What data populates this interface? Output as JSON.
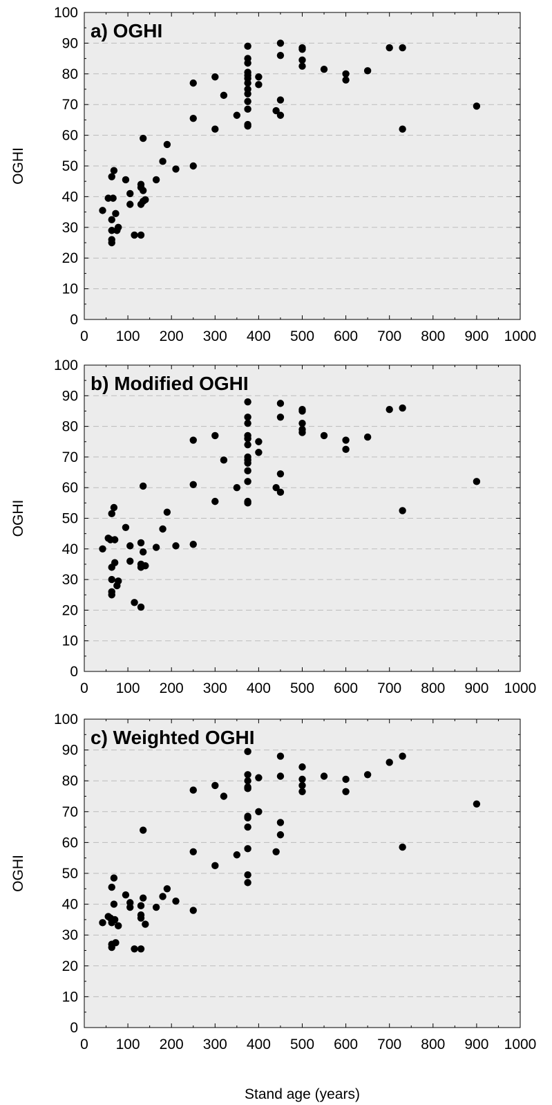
{
  "chart_data": [
    {
      "type": "scatter",
      "title": "a) OGHI",
      "xlabel": "",
      "ylabel": "OGHI",
      "xlim": [
        0,
        1000
      ],
      "ylim": [
        0,
        100
      ],
      "xticks": [
        0,
        100,
        200,
        300,
        400,
        500,
        600,
        700,
        800,
        900,
        1000
      ],
      "yticks": [
        0,
        10,
        20,
        30,
        40,
        50,
        60,
        70,
        80,
        90,
        100
      ],
      "grid": "horizontal dashed",
      "points": [
        {
          "x": 42,
          "y": 35.5
        },
        {
          "x": 55,
          "y": 39.5
        },
        {
          "x": 63,
          "y": 46.5
        },
        {
          "x": 63,
          "y": 32.5
        },
        {
          "x": 63,
          "y": 29
        },
        {
          "x": 63,
          "y": 26
        },
        {
          "x": 63,
          "y": 25
        },
        {
          "x": 66,
          "y": 39.5
        },
        {
          "x": 68,
          "y": 48.5
        },
        {
          "x": 72,
          "y": 34.5
        },
        {
          "x": 75,
          "y": 29
        },
        {
          "x": 78,
          "y": 30
        },
        {
          "x": 95,
          "y": 45.5
        },
        {
          "x": 105,
          "y": 41
        },
        {
          "x": 105,
          "y": 37.5
        },
        {
          "x": 115,
          "y": 27.5
        },
        {
          "x": 130,
          "y": 27.5
        },
        {
          "x": 130,
          "y": 44
        },
        {
          "x": 130,
          "y": 43
        },
        {
          "x": 130,
          "y": 37.5
        },
        {
          "x": 135,
          "y": 42
        },
        {
          "x": 135,
          "y": 38.5
        },
        {
          "x": 140,
          "y": 39
        },
        {
          "x": 135,
          "y": 59
        },
        {
          "x": 165,
          "y": 45.5
        },
        {
          "x": 180,
          "y": 51.5
        },
        {
          "x": 190,
          "y": 57
        },
        {
          "x": 210,
          "y": 49
        },
        {
          "x": 250,
          "y": 77
        },
        {
          "x": 250,
          "y": 65.5
        },
        {
          "x": 250,
          "y": 50
        },
        {
          "x": 300,
          "y": 79
        },
        {
          "x": 300,
          "y": 62
        },
        {
          "x": 320,
          "y": 73
        },
        {
          "x": 350,
          "y": 66.5
        },
        {
          "x": 375,
          "y": 89
        },
        {
          "x": 375,
          "y": 85
        },
        {
          "x": 375,
          "y": 83.5
        },
        {
          "x": 375,
          "y": 80.5
        },
        {
          "x": 375,
          "y": 79.5
        },
        {
          "x": 375,
          "y": 78.5
        },
        {
          "x": 375,
          "y": 77
        },
        {
          "x": 375,
          "y": 75
        },
        {
          "x": 375,
          "y": 73.5
        },
        {
          "x": 375,
          "y": 71
        },
        {
          "x": 375,
          "y": 68.5
        },
        {
          "x": 375,
          "y": 63.5
        },
        {
          "x": 375,
          "y": 63
        },
        {
          "x": 400,
          "y": 79
        },
        {
          "x": 400,
          "y": 76.5
        },
        {
          "x": 440,
          "y": 68
        },
        {
          "x": 450,
          "y": 90
        },
        {
          "x": 450,
          "y": 86
        },
        {
          "x": 450,
          "y": 71.5
        },
        {
          "x": 450,
          "y": 66.5
        },
        {
          "x": 500,
          "y": 88.5
        },
        {
          "x": 500,
          "y": 88
        },
        {
          "x": 500,
          "y": 84.5
        },
        {
          "x": 500,
          "y": 82.5
        },
        {
          "x": 550,
          "y": 81.5
        },
        {
          "x": 600,
          "y": 80
        },
        {
          "x": 600,
          "y": 78
        },
        {
          "x": 650,
          "y": 81
        },
        {
          "x": 700,
          "y": 88.5
        },
        {
          "x": 730,
          "y": 88.5
        },
        {
          "x": 730,
          "y": 62
        },
        {
          "x": 900,
          "y": 69.5
        }
      ]
    },
    {
      "type": "scatter",
      "title": "b) Modified OGHI",
      "xlabel": "",
      "ylabel": "OGHI",
      "xlim": [
        0,
        1000
      ],
      "ylim": [
        0,
        100
      ],
      "xticks": [
        0,
        100,
        200,
        300,
        400,
        500,
        600,
        700,
        800,
        900,
        1000
      ],
      "yticks": [
        0,
        10,
        20,
        30,
        40,
        50,
        60,
        70,
        80,
        90,
        100
      ],
      "grid": "horizontal dashed",
      "points": [
        {
          "x": 42,
          "y": 40
        },
        {
          "x": 55,
          "y": 43.5
        },
        {
          "x": 60,
          "y": 43
        },
        {
          "x": 63,
          "y": 51.5
        },
        {
          "x": 63,
          "y": 34
        },
        {
          "x": 63,
          "y": 30
        },
        {
          "x": 63,
          "y": 26
        },
        {
          "x": 63,
          "y": 25
        },
        {
          "x": 68,
          "y": 53.5
        },
        {
          "x": 70,
          "y": 43
        },
        {
          "x": 70,
          "y": 35.5
        },
        {
          "x": 75,
          "y": 28
        },
        {
          "x": 78,
          "y": 29.5
        },
        {
          "x": 95,
          "y": 47
        },
        {
          "x": 105,
          "y": 41
        },
        {
          "x": 105,
          "y": 36
        },
        {
          "x": 115,
          "y": 22.5
        },
        {
          "x": 130,
          "y": 21
        },
        {
          "x": 130,
          "y": 42
        },
        {
          "x": 130,
          "y": 35
        },
        {
          "x": 130,
          "y": 34
        },
        {
          "x": 135,
          "y": 39
        },
        {
          "x": 140,
          "y": 34.5
        },
        {
          "x": 135,
          "y": 60.5
        },
        {
          "x": 165,
          "y": 40.5
        },
        {
          "x": 180,
          "y": 46.5
        },
        {
          "x": 190,
          "y": 52
        },
        {
          "x": 210,
          "y": 41
        },
        {
          "x": 250,
          "y": 75.5
        },
        {
          "x": 250,
          "y": 61
        },
        {
          "x": 250,
          "y": 41.5
        },
        {
          "x": 300,
          "y": 77
        },
        {
          "x": 300,
          "y": 55.5
        },
        {
          "x": 320,
          "y": 69
        },
        {
          "x": 350,
          "y": 60
        },
        {
          "x": 375,
          "y": 88
        },
        {
          "x": 375,
          "y": 83
        },
        {
          "x": 375,
          "y": 81
        },
        {
          "x": 375,
          "y": 77
        },
        {
          "x": 375,
          "y": 76
        },
        {
          "x": 375,
          "y": 74
        },
        {
          "x": 375,
          "y": 70
        },
        {
          "x": 375,
          "y": 69
        },
        {
          "x": 375,
          "y": 68
        },
        {
          "x": 375,
          "y": 65.5
        },
        {
          "x": 375,
          "y": 62
        },
        {
          "x": 375,
          "y": 55.5
        },
        {
          "x": 375,
          "y": 55
        },
        {
          "x": 400,
          "y": 75
        },
        {
          "x": 400,
          "y": 71.5
        },
        {
          "x": 440,
          "y": 60
        },
        {
          "x": 450,
          "y": 87.5
        },
        {
          "x": 450,
          "y": 83
        },
        {
          "x": 450,
          "y": 64.5
        },
        {
          "x": 450,
          "y": 58.5
        },
        {
          "x": 500,
          "y": 85.5
        },
        {
          "x": 500,
          "y": 85
        },
        {
          "x": 500,
          "y": 81
        },
        {
          "x": 500,
          "y": 79
        },
        {
          "x": 500,
          "y": 78
        },
        {
          "x": 550,
          "y": 77
        },
        {
          "x": 600,
          "y": 75.5
        },
        {
          "x": 600,
          "y": 72.5
        },
        {
          "x": 650,
          "y": 76.5
        },
        {
          "x": 700,
          "y": 85.5
        },
        {
          "x": 730,
          "y": 86
        },
        {
          "x": 730,
          "y": 52.5
        },
        {
          "x": 900,
          "y": 62
        }
      ]
    },
    {
      "type": "scatter",
      "title": "c) Weighted OGHI",
      "xlabel": "Stand age (years)",
      "ylabel": "OGHI",
      "xlim": [
        0,
        1000
      ],
      "ylim": [
        0,
        100
      ],
      "xticks": [
        0,
        100,
        200,
        300,
        400,
        500,
        600,
        700,
        800,
        900,
        1000
      ],
      "yticks": [
        0,
        10,
        20,
        30,
        40,
        50,
        60,
        70,
        80,
        90,
        100
      ],
      "grid": "horizontal dashed",
      "points": [
        {
          "x": 42,
          "y": 34
        },
        {
          "x": 55,
          "y": 36
        },
        {
          "x": 60,
          "y": 35.5
        },
        {
          "x": 63,
          "y": 45.5
        },
        {
          "x": 63,
          "y": 34
        },
        {
          "x": 63,
          "y": 27
        },
        {
          "x": 63,
          "y": 26
        },
        {
          "x": 68,
          "y": 48.5
        },
        {
          "x": 68,
          "y": 40
        },
        {
          "x": 70,
          "y": 35
        },
        {
          "x": 72,
          "y": 27.5
        },
        {
          "x": 78,
          "y": 33
        },
        {
          "x": 95,
          "y": 43
        },
        {
          "x": 105,
          "y": 40.5
        },
        {
          "x": 105,
          "y": 39
        },
        {
          "x": 115,
          "y": 25.5
        },
        {
          "x": 130,
          "y": 25.5
        },
        {
          "x": 130,
          "y": 39.5
        },
        {
          "x": 130,
          "y": 36.5
        },
        {
          "x": 130,
          "y": 35.5
        },
        {
          "x": 135,
          "y": 42
        },
        {
          "x": 140,
          "y": 33.5
        },
        {
          "x": 135,
          "y": 64
        },
        {
          "x": 165,
          "y": 39
        },
        {
          "x": 180,
          "y": 42.5
        },
        {
          "x": 190,
          "y": 45
        },
        {
          "x": 210,
          "y": 41
        },
        {
          "x": 250,
          "y": 77
        },
        {
          "x": 250,
          "y": 57
        },
        {
          "x": 250,
          "y": 38
        },
        {
          "x": 300,
          "y": 78.5
        },
        {
          "x": 300,
          "y": 52.5
        },
        {
          "x": 320,
          "y": 75
        },
        {
          "x": 350,
          "y": 56
        },
        {
          "x": 375,
          "y": 89.5
        },
        {
          "x": 375,
          "y": 82
        },
        {
          "x": 375,
          "y": 80
        },
        {
          "x": 375,
          "y": 78
        },
        {
          "x": 375,
          "y": 77.5
        },
        {
          "x": 375,
          "y": 68.5
        },
        {
          "x": 375,
          "y": 68
        },
        {
          "x": 375,
          "y": 65
        },
        {
          "x": 375,
          "y": 58
        },
        {
          "x": 375,
          "y": 49.5
        },
        {
          "x": 375,
          "y": 47
        },
        {
          "x": 400,
          "y": 81
        },
        {
          "x": 400,
          "y": 70
        },
        {
          "x": 440,
          "y": 57
        },
        {
          "x": 450,
          "y": 88
        },
        {
          "x": 450,
          "y": 81.5
        },
        {
          "x": 450,
          "y": 66.5
        },
        {
          "x": 450,
          "y": 62.5
        },
        {
          "x": 500,
          "y": 84.5
        },
        {
          "x": 500,
          "y": 80.5
        },
        {
          "x": 500,
          "y": 78.5
        },
        {
          "x": 500,
          "y": 76.5
        },
        {
          "x": 550,
          "y": 81.5
        },
        {
          "x": 600,
          "y": 80.5
        },
        {
          "x": 600,
          "y": 76.5
        },
        {
          "x": 650,
          "y": 82
        },
        {
          "x": 700,
          "y": 86
        },
        {
          "x": 730,
          "y": 88
        },
        {
          "x": 730,
          "y": 58.5
        },
        {
          "x": 900,
          "y": 72.5
        }
      ]
    }
  ],
  "colors": {
    "panel_background": "#ececec",
    "grid_line": "#bbbbbb",
    "marker": "#000000",
    "axis": "#000000"
  }
}
